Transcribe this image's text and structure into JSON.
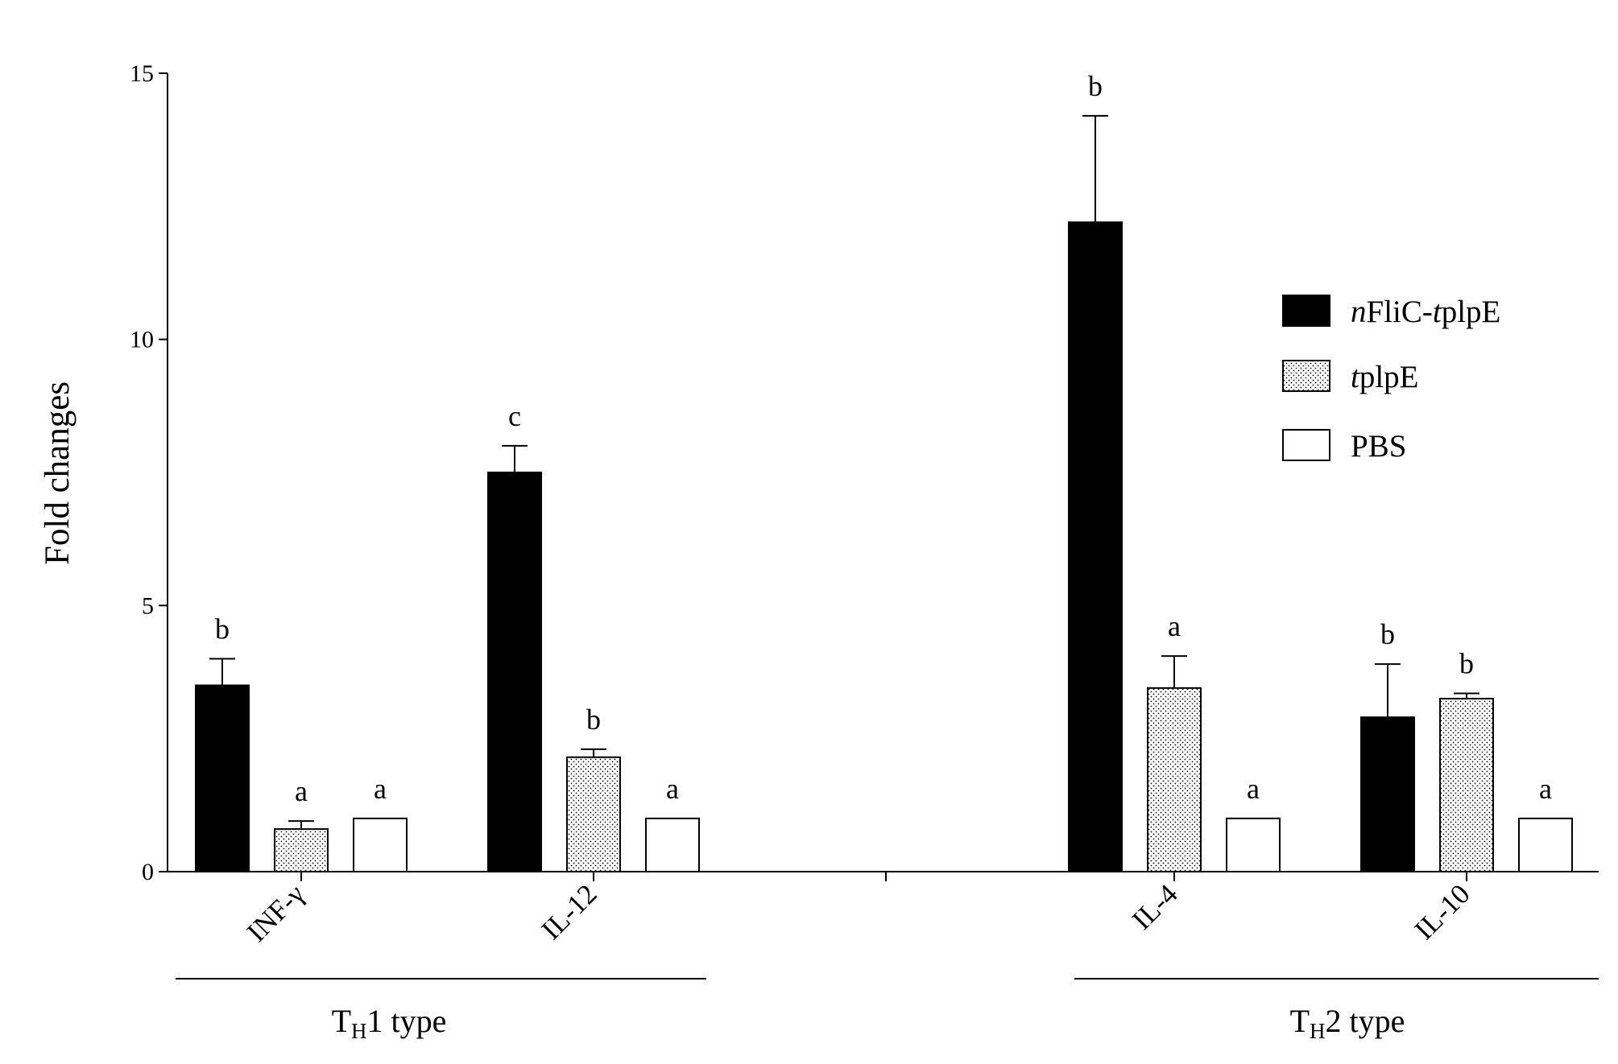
{
  "chart_data": {
    "type": "bar",
    "ylabel": "Fold changes",
    "ylim": [
      0,
      15
    ],
    "yticks": [
      0,
      5,
      10,
      15
    ],
    "categories": [
      "INF-γ",
      "IL-12",
      "IL-4",
      "IL-10"
    ],
    "groups": [
      {
        "label_main": "T",
        "label_sub": "H",
        "label_rest": "1 type",
        "categories": [
          "INF-γ",
          "IL-12"
        ]
      },
      {
        "label_main": "T",
        "label_sub": "H",
        "label_rest": "2 type",
        "categories": [
          "IL-4",
          "IL-10"
        ]
      }
    ],
    "series": [
      {
        "name": "nFliC-tplpE",
        "name_parts": [
          {
            "t": "n",
            "italic": true
          },
          {
            "t": "FliC-",
            "italic": false
          },
          {
            "t": "t",
            "italic": true
          },
          {
            "t": "plpE",
            "italic": false
          }
        ],
        "fill": "solid",
        "values": [
          3.5,
          7.5,
          12.2,
          2.9
        ],
        "errors": [
          0.5,
          0.5,
          2.0,
          1.0
        ],
        "significance": [
          "b",
          "c",
          "b",
          "b"
        ]
      },
      {
        "name": "tplpE",
        "name_parts": [
          {
            "t": "t",
            "italic": true
          },
          {
            "t": "plpE",
            "italic": false
          }
        ],
        "fill": "dotted",
        "values": [
          0.8,
          2.15,
          3.45,
          3.25
        ],
        "errors": [
          0.15,
          0.15,
          0.6,
          0.1
        ],
        "significance": [
          "a",
          "b",
          "a",
          "b"
        ]
      },
      {
        "name": "PBS",
        "name_parts": [
          {
            "t": "PBS",
            "italic": false
          }
        ],
        "fill": "none",
        "values": [
          1.0,
          1.0,
          1.0,
          1.0
        ],
        "errors": [
          0,
          0,
          0,
          0
        ],
        "significance": [
          "a",
          "a",
          "a",
          "a"
        ]
      }
    ],
    "legend_position": "right",
    "grid": false,
    "colors": {
      "solid": "#000000",
      "outline": "#000000",
      "background": "#ffffff"
    }
  }
}
